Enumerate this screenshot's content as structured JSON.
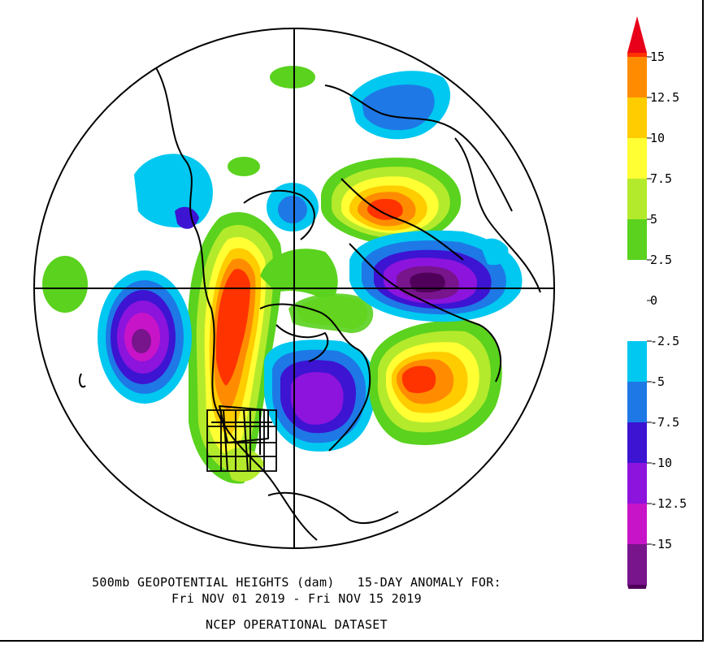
{
  "caption": {
    "line1": "500mb GEOPOTENTIAL HEIGHTS (dam)   15-DAY ANOMALY FOR:",
    "line2": "Fri NOV 01 2019 - Fri NOV 15 2019",
    "line3": "NCEP OPERATIONAL DATASET"
  },
  "colorbar": {
    "labels": [
      "15",
      "12.5",
      "10",
      "7.5",
      "5",
      "2.5",
      "0",
      "-2.5",
      "-5",
      "-7.5",
      "-10",
      "-12.5",
      "-15"
    ],
    "colors": {
      "gt15": "#e8001a",
      "12.5_15": "#ff3300",
      "10_12.5": "#ff8c00",
      "7.5_10": "#ffcc00",
      "5_7.5": "#ffff33",
      "2.5_5": "#b4ea2c",
      "0_2.5": "#5ad21e",
      "neutral": "#ffffff",
      "m2.5_m5": "#00c8f0",
      "m5_m7.5": "#1e78e6",
      "m7.5_m10": "#3c14d2",
      "m10_m12.5": "#8c14dc",
      "m12.5_m15": "#c814c8",
      "lt_m15": "#78148c",
      "lowest": "#50005a"
    }
  }
}
